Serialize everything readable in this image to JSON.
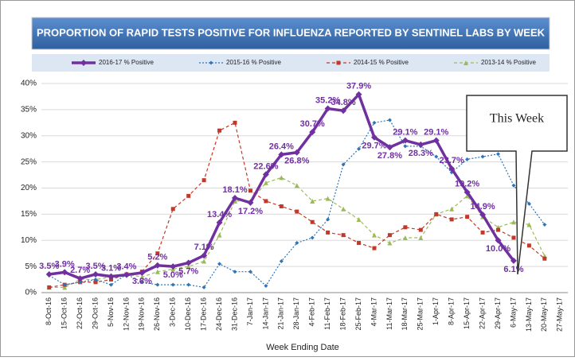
{
  "chart_data": {
    "type": "line",
    "title": "PROPORTION OF RAPID TESTS POSITIVE FOR INFLUENZA REPORTED BY SENTINEL LABS BY WEEK",
    "xlabel": "Week Ending Date",
    "annotation": "This Week",
    "categories": [
      "8-Oct-16",
      "15-Oct-16",
      "22-Oct-16",
      "29-Oct-16",
      "5-Nov-16",
      "12-Nov-16",
      "19-Nov-16",
      "26-Nov-16",
      "3-Dec-16",
      "10-Dec-16",
      "17-Dec-16",
      "24-Dec-16",
      "31-Dec-16",
      "7-Jan-17",
      "14-Jan-17",
      "21-Jan-17",
      "28-Jan-17",
      "4-Feb-17",
      "11-Feb-17",
      "18-Feb-17",
      "25-Feb-17",
      "4-Mar-17",
      "11-Mar-17",
      "18-Mar-17",
      "25-Mar-17",
      "1-Apr-17",
      "8-Apr-17",
      "15-Apr-17",
      "22-Apr-17",
      "29-Apr-17",
      "6-May-17",
      "13-May-17",
      "20-May-17",
      "27-May-17"
    ],
    "ylim": [
      0,
      40
    ],
    "yticks": [
      {
        "value": 0,
        "label": "0%"
      },
      {
        "value": 5,
        "label": "5%"
      },
      {
        "value": 10,
        "label": "10%"
      },
      {
        "value": 15,
        "label": "15%"
      },
      {
        "value": 20,
        "label": "20%"
      },
      {
        "value": 25,
        "label": "25%"
      },
      {
        "value": 30,
        "label": "30%"
      },
      {
        "value": 35,
        "label": "35%"
      },
      {
        "value": 40,
        "label": "40%"
      }
    ],
    "grid": true,
    "series": [
      {
        "name": "2016-17 % Positive",
        "color": "#7030a0",
        "values": [
          3.5,
          3.9,
          2.7,
          3.5,
          3.1,
          3.4,
          3.8,
          5.2,
          5.0,
          5.7,
          7.1,
          13.4,
          18.1,
          17.2,
          22.6,
          26.4,
          26.8,
          30.7,
          35.2,
          34.8,
          37.9,
          29.7,
          27.8,
          29.1,
          28.3,
          29.1,
          23.7,
          19.2,
          14.9,
          10.0,
          6.1,
          null,
          null,
          null
        ],
        "value_labels": [
          "3.5%",
          "3.9%",
          "2.7%",
          "3.5%",
          "3.1%",
          "3.4%",
          "3.8%",
          "5.2%",
          "5.0%",
          "5.7%",
          "7.1%",
          "13.4%",
          "18.1%",
          "17.2%",
          "22.6%",
          "26.4%",
          "26.8%",
          "30.7%",
          "35.2%",
          "34.8%",
          "37.9%",
          "29.7%",
          "27.8%",
          "29.1%",
          "28.3%",
          "29.1%",
          "23.7%",
          "19.2%",
          "14.9%",
          "10.0%",
          "6.1%",
          null,
          null,
          null
        ]
      },
      {
        "name": "2015-16 % Positive",
        "color": "#2e75b6",
        "values": [
          3.3,
          1.5,
          2,
          2.5,
          1.5,
          3.5,
          2,
          1.5,
          1.5,
          1.5,
          1,
          5.5,
          4,
          4,
          1.3,
          6,
          9.5,
          10.5,
          14,
          24.5,
          27.5,
          32.5,
          33,
          28,
          28,
          26,
          23,
          25.5,
          26,
          26.5,
          20.5,
          17,
          13,
          null
        ]
      },
      {
        "name": "2014-15 % Positive",
        "color": "#c0392b",
        "values": [
          1,
          1.5,
          2,
          2,
          2.5,
          3.5,
          4,
          7.5,
          16,
          18.5,
          21.5,
          31,
          32.5,
          19.5,
          17.5,
          16.5,
          15.5,
          13.5,
          11.5,
          11,
          9.5,
          8.5,
          11,
          12.5,
          12,
          15,
          14,
          14.5,
          11.5,
          12,
          10.5,
          9,
          6.5,
          null
        ]
      },
      {
        "name": "2013-14 % Positive",
        "color": "#9bbb59",
        "values": [
          1,
          1,
          2.5,
          2.5,
          3,
          3.5,
          3,
          4,
          4.5,
          5,
          6,
          11,
          17.5,
          17.5,
          21,
          22,
          20.5,
          17.5,
          18,
          16,
          14,
          11,
          9.5,
          10.5,
          10.5,
          15,
          16,
          18.5,
          14.5,
          12.5,
          13.5,
          13,
          7,
          null
        ]
      }
    ]
  }
}
